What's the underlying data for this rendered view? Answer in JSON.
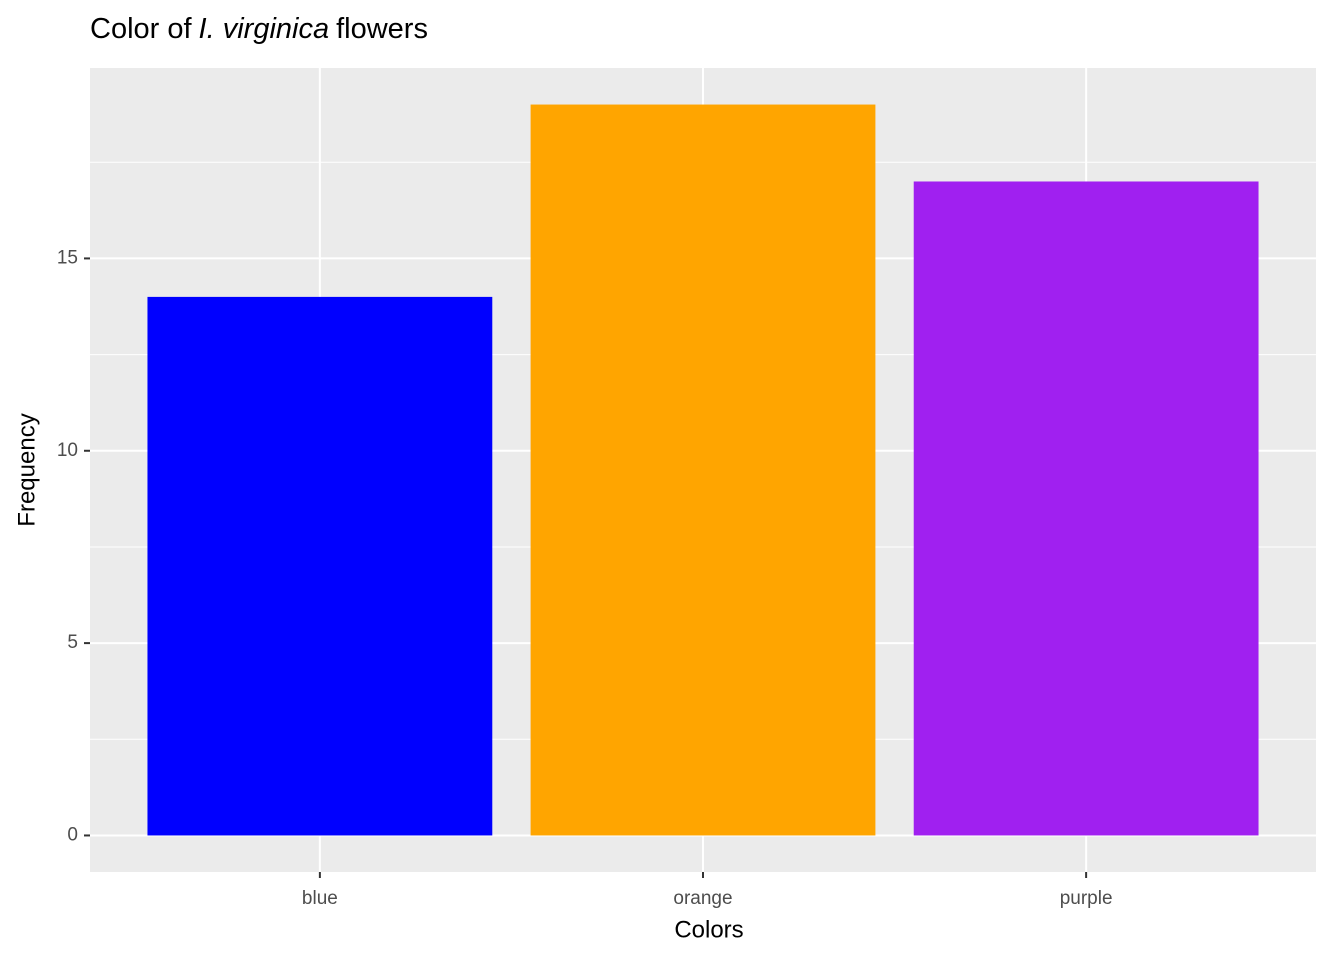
{
  "chart_data": {
    "type": "bar",
    "title": [
      "Color of",
      "I. virginica",
      "flowers"
    ],
    "title_italic": [
      false,
      true,
      false
    ],
    "x_label": "Colors",
    "y_label": "Frequency",
    "categories": [
      "blue",
      "orange",
      "purple"
    ],
    "values": [
      14,
      19,
      17
    ],
    "colors": [
      "#0000ff",
      "#ffa500",
      "#a020f0"
    ],
    "ylim": [
      -0.95,
      19.95
    ],
    "yticks": [
      0,
      5,
      10,
      15
    ],
    "minor_yticks": [
      2.5,
      7.5,
      12.5,
      17.5
    ],
    "grid": true
  }
}
